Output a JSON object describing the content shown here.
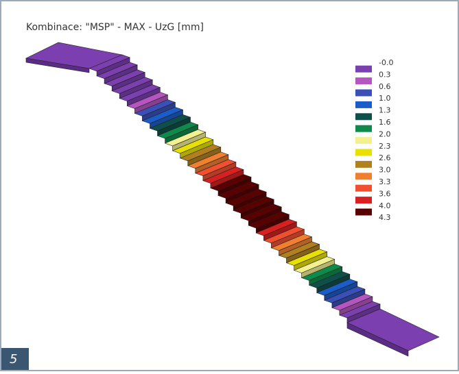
{
  "title": "Kombinace: \"MSP\" - MAX - UzG [mm]",
  "legend": {
    "labels": [
      "-0.0",
      "0.3",
      "0.6",
      "1.0",
      "1.3",
      "1.6",
      "2.0",
      "2.3",
      "2.6",
      "3.0",
      "3.3",
      "3.6",
      "4.0",
      "4.3"
    ],
    "colors": [
      "#7b3fb0",
      "#b455c0",
      "#3a50b8",
      "#1c5cc8",
      "#0f4f4a",
      "#0e8a4a",
      "#f2f090",
      "#e8e000",
      "#b08020",
      "#f08030",
      "#f05030",
      "#d82020",
      "#5a0000"
    ]
  },
  "figure_number": "5"
}
